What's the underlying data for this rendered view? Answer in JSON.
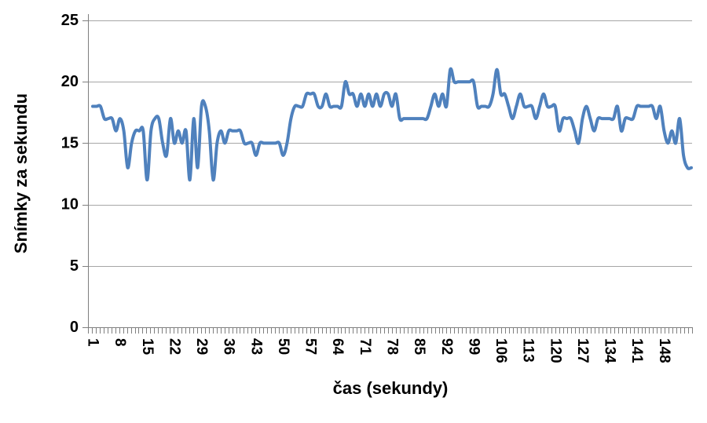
{
  "chart": {
    "colors": {
      "line": "#4F81BD",
      "gridline": "#A6A6A6",
      "axis": "#7F7F7F",
      "text": "#000000",
      "background": "#FFFFFF"
    }
  },
  "chart_data": {
    "type": "line",
    "title": "",
    "xlabel": "čas (sekundy)",
    "ylabel": "Snímky za sekundu",
    "x_first": 1,
    "x_step": 1,
    "x_count": 155,
    "x_tick_labels": [
      1,
      8,
      15,
      22,
      29,
      36,
      43,
      50,
      57,
      64,
      71,
      78,
      85,
      92,
      99,
      106,
      113,
      120,
      127,
      134,
      141,
      148
    ],
    "y_ticks": [
      0,
      5,
      10,
      15,
      20,
      25
    ],
    "ylim": [
      0,
      25
    ],
    "grid": true,
    "legend": "none",
    "smoothed_line": true,
    "series": [
      {
        "name": "Snímky za sekundu",
        "values": [
          18,
          18,
          18,
          17,
          17,
          17,
          16,
          17,
          16,
          13,
          15,
          16,
          16,
          16,
          12,
          16,
          17,
          17,
          15,
          14,
          17,
          15,
          16,
          15,
          16,
          12,
          17,
          13,
          18,
          18,
          16,
          12,
          15,
          16,
          15,
          16,
          16,
          16,
          16,
          15,
          15,
          15,
          14,
          15,
          15,
          15,
          15,
          15,
          15,
          14,
          15,
          17,
          18,
          18,
          18,
          19,
          19,
          19,
          18,
          18,
          19,
          18,
          18,
          18,
          18,
          20,
          19,
          19,
          18,
          19,
          18,
          19,
          18,
          19,
          18,
          19,
          19,
          18,
          19,
          17,
          17,
          17,
          17,
          17,
          17,
          17,
          17,
          18,
          19,
          18,
          19,
          18,
          21,
          20,
          20,
          20,
          20,
          20,
          20,
          18,
          18,
          18,
          18,
          19,
          21,
          19,
          19,
          18,
          17,
          18,
          19,
          18,
          18,
          18,
          17,
          18,
          19,
          18,
          18,
          18,
          16,
          17,
          17,
          17,
          16,
          15,
          17,
          18,
          17,
          16,
          17,
          17,
          17,
          17,
          17,
          18,
          16,
          17,
          17,
          17,
          18,
          18,
          18,
          18,
          18,
          17,
          18,
          16,
          15,
          16,
          15,
          17,
          14,
          13,
          13
        ]
      }
    ]
  }
}
